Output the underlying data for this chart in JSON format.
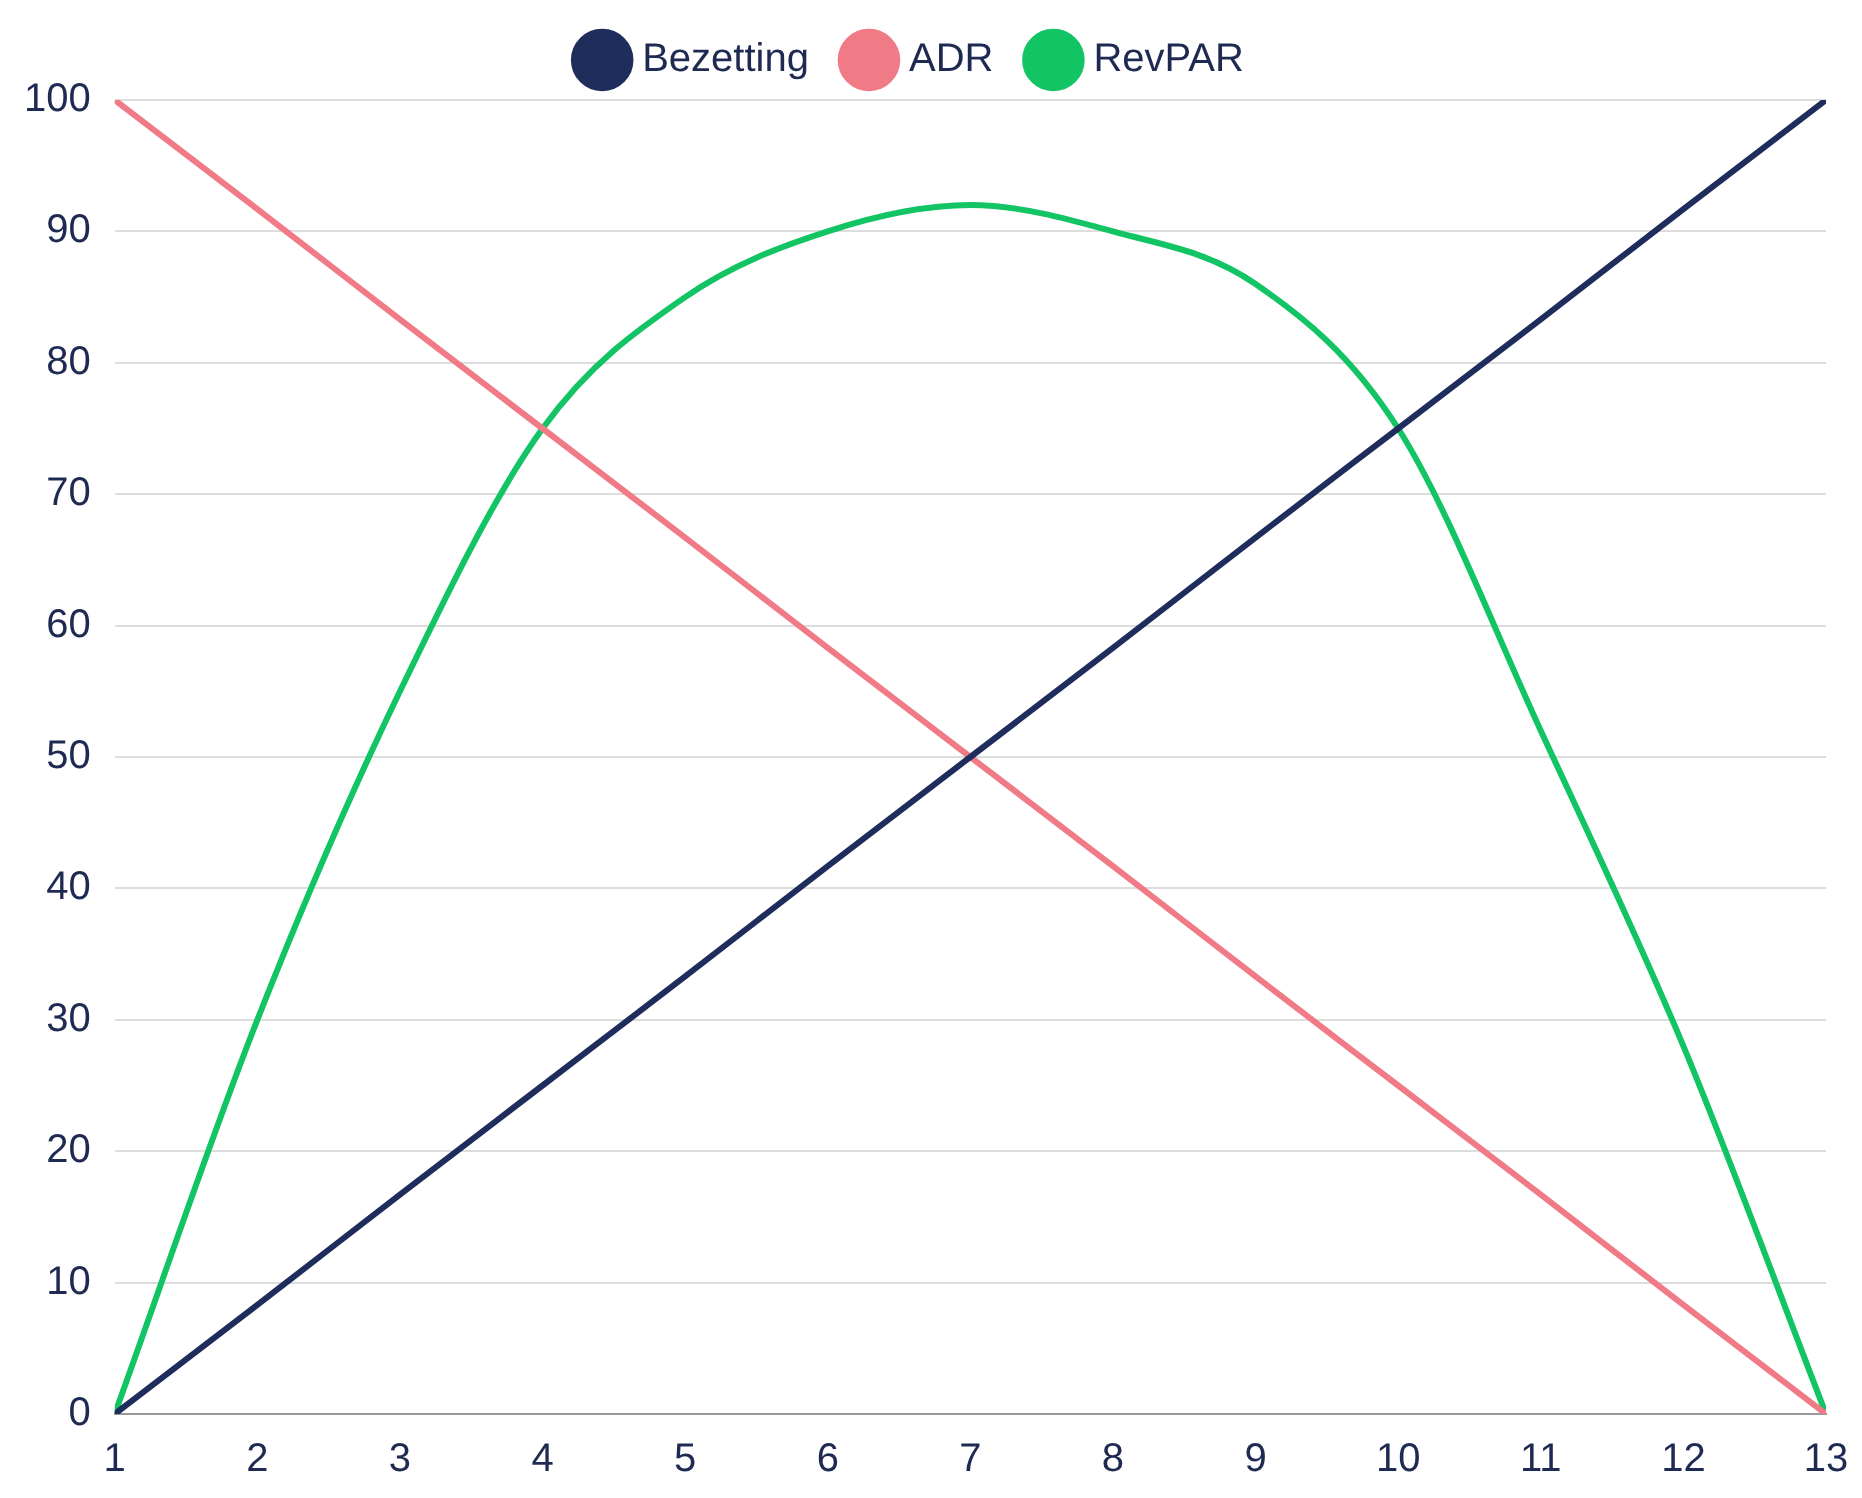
{
  "chart_data": {
    "type": "line",
    "x": [
      1,
      2,
      3,
      4,
      5,
      6,
      7,
      8,
      9,
      10,
      11,
      12,
      13
    ],
    "series": [
      {
        "name": "Bezetting",
        "color": "#1f2d5c",
        "values": [
          0,
          8.3,
          16.7,
          25,
          33.3,
          41.7,
          50,
          58.3,
          66.7,
          75,
          83.3,
          91.7,
          100
        ]
      },
      {
        "name": "ADR",
        "color": "#f07a85",
        "values": [
          100,
          91.7,
          83.3,
          75,
          66.7,
          58.3,
          50,
          41.7,
          33.3,
          25,
          16.7,
          8.3,
          0
        ]
      },
      {
        "name": "RevPAR",
        "color": "#12c464",
        "values": [
          0,
          30,
          55,
          75,
          85,
          90,
          92,
          90,
          86,
          75,
          52,
          28,
          0
        ]
      }
    ],
    "xlim": [
      1,
      13
    ],
    "xticks": [
      1,
      2,
      3,
      4,
      5,
      6,
      7,
      8,
      9,
      10,
      11,
      12,
      13
    ],
    "ylim": [
      0,
      100
    ],
    "yticks": [
      0,
      10,
      20,
      30,
      40,
      50,
      60,
      70,
      80,
      90,
      100
    ],
    "grid": "y",
    "legend": "top",
    "marker": "none",
    "line_style": "solid"
  }
}
